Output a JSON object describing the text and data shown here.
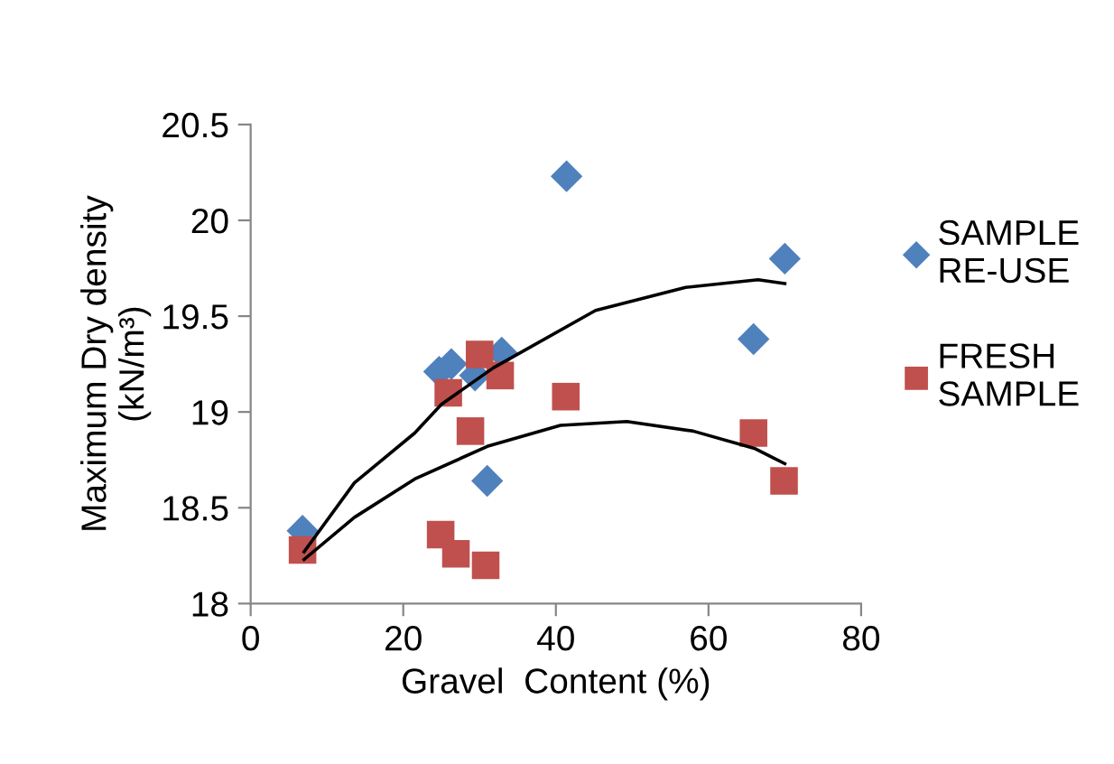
{
  "chart_data": {
    "type": "scatter",
    "xlabel": "Gravel  Content (%)",
    "ylabel": "Maximum Dry density\n(kN/m³)",
    "xlim": [
      0,
      80
    ],
    "xticks": [
      0,
      20,
      40,
      60,
      80
    ],
    "ylim": [
      18,
      20.5
    ],
    "yticks": [
      18,
      18.5,
      19,
      19.5,
      20,
      20.5
    ],
    "grid": false,
    "legend": "right",
    "series": [
      {
        "name": "SAMPLE\nRE-USE",
        "color": "#4f81bd",
        "marker": "diamond",
        "x": [
          6.8,
          24.7,
          26.3,
          27.5,
          29.4,
          30.2,
          31.0,
          32.9,
          41.4,
          65.9,
          70.0
        ],
        "values": [
          18.38,
          19.21,
          19.25,
          null,
          19.19,
          null,
          18.64,
          19.31,
          20.23,
          19.38,
          19.8
        ]
      },
      {
        "name": "FRESH\nSAMPLE",
        "color": "#c0504d",
        "marker": "square",
        "x": [
          6.8,
          24.9,
          25.9,
          26.9,
          28.8,
          30.0,
          30.8,
          32.7,
          41.3,
          65.9,
          69.9
        ],
        "values": [
          18.28,
          18.36,
          19.1,
          18.26,
          18.9,
          19.3,
          18.2,
          19.19,
          19.08,
          18.89,
          18.64
        ]
      },
      {
        "type": "line",
        "color": "#000000",
        "marker": "none",
        "x": [
          7,
          13.6,
          21.5,
          25,
          31.8,
          45.2,
          57,
          66.5,
          70
        ],
        "values": [
          18.27,
          18.63,
          18.89,
          19.04,
          19.23,
          19.53,
          19.65,
          19.69,
          19.67
        ]
      },
      {
        "type": "line",
        "color": "#000000",
        "marker": "none",
        "x": [
          7,
          13.6,
          21.5,
          31,
          40.6,
          49.3,
          58,
          66,
          70
        ],
        "values": [
          18.23,
          18.45,
          18.65,
          18.82,
          18.93,
          18.95,
          18.9,
          18.81,
          18.73
        ]
      }
    ]
  }
}
